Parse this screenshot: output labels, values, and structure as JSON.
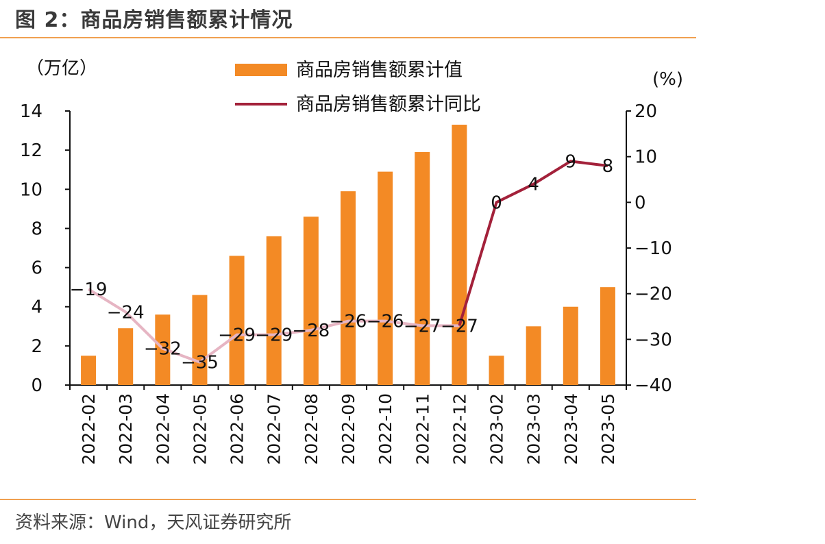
{
  "figure": {
    "title": "图 2：商品房销售额累计情况",
    "source": "资料来源：Wind，天风证券研究所"
  },
  "colors": {
    "bar": "#f38a25",
    "line_past": "#e6b5c3",
    "line_recent": "#a3213a",
    "rule": "#f0a050",
    "axis": "#111111"
  },
  "chart_data": {
    "type": "bar+line",
    "categories": [
      "2022-02",
      "2022-03",
      "2022-04",
      "2022-05",
      "2022-06",
      "2022-07",
      "2022-08",
      "2022-09",
      "2022-10",
      "2022-11",
      "2022-12",
      "2023-02",
      "2023-03",
      "2023-04",
      "2023-05"
    ],
    "series": [
      {
        "name": "商品房销售额累计值",
        "type": "bar",
        "axis": "left",
        "values": [
          1.5,
          2.9,
          3.6,
          4.6,
          6.6,
          7.6,
          8.6,
          9.9,
          10.9,
          11.9,
          13.3,
          1.5,
          3.0,
          4.0,
          5.0
        ]
      },
      {
        "name": "商品房销售额累计同比",
        "type": "line",
        "axis": "right",
        "values": [
          -19,
          -24,
          -32,
          -35,
          -29,
          -29,
          -28,
          -26,
          -26,
          -27,
          -27,
          0,
          4,
          9,
          8
        ],
        "labels": [
          "−19",
          "−24",
          "−32",
          "−35",
          "−29",
          "−29",
          "−28",
          "−26",
          "−26",
          "−27",
          "−27",
          "0",
          "4",
          "9",
          "8"
        ]
      }
    ],
    "y_left": {
      "label": "（万亿）",
      "ylim": [
        0,
        14
      ],
      "ticks": [
        "0",
        "2",
        "4",
        "6",
        "8",
        "10",
        "12",
        "14"
      ]
    },
    "y_right": {
      "label": "(%)",
      "ylim": [
        -40,
        20
      ],
      "ticks": [
        "−40",
        "−30",
        "−20",
        "−10",
        "0",
        "10",
        "20"
      ]
    },
    "legend_position": "top-center",
    "grid": false
  }
}
